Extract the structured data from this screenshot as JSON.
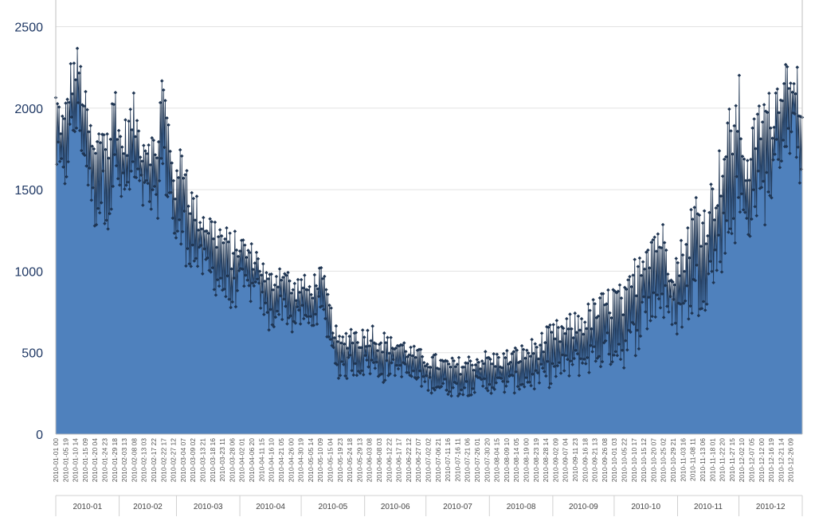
{
  "chart_data": {
    "type": "area",
    "title": "",
    "xlabel": "",
    "ylabel": "",
    "ylim": [
      0,
      2500
    ],
    "y_ticks": [
      0,
      500,
      1000,
      1500,
      2000,
      2500
    ],
    "grid": "horizontal",
    "legend": "none",
    "colors": {
      "fill": "#4f81bd",
      "marker": "#1f3552",
      "grid": "#e3e3e3",
      "axis_text": "#1f3864"
    },
    "series": [
      {
        "points_daily_range": {
          "date": [
            "2010-01-01",
            "2010-01-05",
            "2010-01-08",
            "2010-01-12",
            "2010-01-15",
            "2010-01-20",
            "2010-01-24",
            "2010-01-27",
            "2010-01-30",
            "2010-02-02",
            "2010-02-05",
            "2010-02-08",
            "2010-02-12",
            "2010-02-16",
            "2010-02-19",
            "2010-02-22",
            "2010-02-26",
            "2010-03-01",
            "2010-03-04",
            "2010-03-08",
            "2010-03-12",
            "2010-03-16",
            "2010-03-20",
            "2010-03-24",
            "2010-03-28",
            "2010-04-01",
            "2010-04-05",
            "2010-04-10",
            "2010-04-15",
            "2010-04-18",
            "2010-04-22",
            "2010-04-27",
            "2010-05-01",
            "2010-05-05",
            "2010-05-10",
            "2010-05-13",
            "2010-05-17",
            "2010-05-20",
            "2010-05-25",
            "2010-05-30",
            "2010-06-04",
            "2010-06-09",
            "2010-06-14",
            "2010-06-19",
            "2010-06-24",
            "2010-06-29",
            "2010-07-04",
            "2010-07-09",
            "2010-07-14",
            "2010-07-19",
            "2010-07-24",
            "2010-07-29",
            "2010-08-03",
            "2010-08-08",
            "2010-08-13",
            "2010-08-18",
            "2010-08-23",
            "2010-08-28",
            "2010-09-02",
            "2010-09-07",
            "2010-09-12",
            "2010-09-17",
            "2010-09-22",
            "2010-09-27",
            "2010-10-02",
            "2010-10-06",
            "2010-10-10",
            "2010-10-15",
            "2010-10-20",
            "2010-10-24",
            "2010-10-28",
            "2010-11-01",
            "2010-11-05",
            "2010-11-10",
            "2010-11-14",
            "2010-11-19",
            "2010-11-23",
            "2010-11-27",
            "2010-12-01",
            "2010-12-05",
            "2010-12-09",
            "2010-12-13",
            "2010-12-17",
            "2010-12-21",
            "2010-12-25",
            "2010-12-29",
            "2010-12-31"
          ],
          "low": [
            1600,
            1400,
            1700,
            1800,
            1600,
            1250,
            1300,
            1250,
            1400,
            1400,
            1350,
            1450,
            1350,
            1300,
            1250,
            1500,
            1350,
            1050,
            1050,
            1000,
            950,
            900,
            850,
            800,
            700,
            850,
            800,
            800,
            600,
            650,
            700,
            600,
            650,
            600,
            700,
            600,
            450,
            300,
            350,
            350,
            350,
            300,
            350,
            350,
            300,
            280,
            250,
            240,
            230,
            230,
            240,
            240,
            250,
            240,
            250,
            260,
            260,
            270,
            300,
            320,
            340,
            360,
            380,
            400,
            420,
            400,
            450,
            550,
            650,
            700,
            600,
            600,
            650,
            700,
            750,
            850,
            1000,
            1100,
            1200,
            1150,
            1300,
            1250,
            1400,
            1600,
            1700,
            1700,
            1450
          ],
          "high": [
            2150,
            2000,
            2300,
            2400,
            2150,
            1800,
            2050,
            1900,
            2270,
            1850,
            2000,
            2100,
            1900,
            1950,
            1800,
            2300,
            1900,
            1600,
            1950,
            1550,
            1450,
            1400,
            1350,
            1300,
            1250,
            1250,
            1200,
            1150,
            1000,
            1050,
            1100,
            950,
            1000,
            950,
            1050,
            950,
            700,
            600,
            700,
            650,
            700,
            650,
            600,
            600,
            550,
            520,
            500,
            480,
            470,
            480,
            500,
            520,
            510,
            520,
            540,
            560,
            600,
            650,
            700,
            720,
            760,
            800,
            850,
            900,
            950,
            900,
            1050,
            1300,
            1350,
            1350,
            1200,
            1150,
            1300,
            1550,
            1450,
            1650,
            1850,
            2050,
            2230,
            1700,
            2000,
            2150,
            2100,
            2300,
            2360,
            2400,
            1950
          ]
        }
      }
    ],
    "x_tick_labels": [
      "2010-01-01 00",
      "2010-01-05 19",
      "2010-01-10 14",
      "2010-01-15 09",
      "2010-01-20 04",
      "2010-01-24 23",
      "2010-01-29 18",
      "2010-02-03 13",
      "2010-02-08 08",
      "2010-02-13 03",
      "2010-02-17 22",
      "2010-02-22 17",
      "2010-02-27 12",
      "2010-03-04 07",
      "2010-03-09 02",
      "2010-03-13 21",
      "2010-03-18 16",
      "2010-03-23 11",
      "2010-03-28 06",
      "2010-04-02 01",
      "2010-04-06 20",
      "2010-04-11 15",
      "2010-04-16 10",
      "2010-04-21 05",
      "2010-04-26 00",
      "2010-04-30 19",
      "2010-05-05 14",
      "2010-05-10 09",
      "2010-05-15 04",
      "2010-05-19 23",
      "2010-05-24 18",
      "2010-05-29 13",
      "2010-06-03 08",
      "2010-06-08 03",
      "2010-06-12 22",
      "2010-06-17 17",
      "2010-06-22 12",
      "2010-06-27 07",
      "2010-07-02 02",
      "2010-07-06 21",
      "2010-07-11 16",
      "2010-07-16 11",
      "2010-07-21 06",
      "2010-07-26 01",
      "2010-07-30 20",
      "2010-08-04 15",
      "2010-08-09 10",
      "2010-08-14 05",
      "2010-08-19 00",
      "2010-08-23 19",
      "2010-08-28 14",
      "2010-09-02 09",
      "2010-09-07 04",
      "2010-09-11 23",
      "2010-09-16 18",
      "2010-09-21 13",
      "2010-09-26 08",
      "2010-10-01 03",
      "2010-10-05 22",
      "2010-10-10 17",
      "2010-10-15 12",
      "2010-10-20 07",
      "2010-10-25 02",
      "2010-10-29 21",
      "2010-11-03 16",
      "2010-11-08 11",
      "2010-11-13 06",
      "2010-11-18 01",
      "2010-11-22 20",
      "2010-11-27 15",
      "2010-12-02 10",
      "2010-12-07 05",
      "2010-12-12 00",
      "2010-12-16 19",
      "2010-12-21 14",
      "2010-12-26 09"
    ],
    "month_labels": [
      "2010-01",
      "2010-02",
      "2010-03",
      "2010-04",
      "2010-05",
      "2010-06",
      "2010-07",
      "2010-08",
      "2010-09",
      "2010-10",
      "2010-11",
      "2010-12"
    ]
  }
}
